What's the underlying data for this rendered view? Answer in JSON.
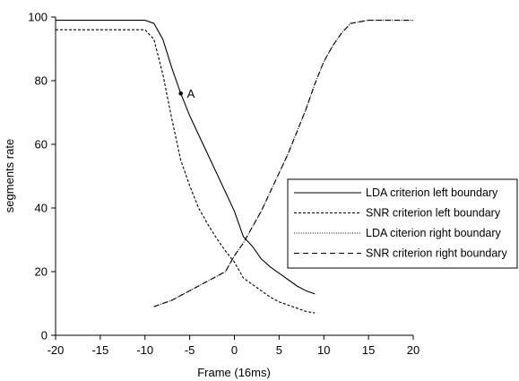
{
  "chart_data": {
    "type": "line",
    "title": "",
    "xlabel": "Frame (16ms)",
    "ylabel": "segments rate",
    "xlim": [
      -20,
      20
    ],
    "ylim": [
      0,
      100
    ],
    "xticks": [
      -20,
      -15,
      -10,
      -5,
      0,
      5,
      10,
      15,
      20
    ],
    "yticks": [
      0,
      20,
      40,
      60,
      80,
      100
    ],
    "grid": false,
    "legend_placement": "center-right",
    "series": [
      {
        "name": "LDA criterion left boundary",
        "style": "solid",
        "x": [
          -20,
          -10,
          -9,
          -8,
          -7,
          -6,
          -5,
          -4,
          -3,
          -2,
          -1,
          0,
          1,
          2,
          3,
          4,
          5,
          6,
          7,
          8,
          9
        ],
        "y": [
          99,
          99,
          98,
          93,
          84,
          76,
          69,
          63,
          57,
          51,
          45,
          39,
          31,
          28,
          24,
          21.5,
          19.5,
          17.5,
          15.5,
          14,
          13
        ]
      },
      {
        "name": "SNR criterion left boundary",
        "style": "dashed-short",
        "x": [
          -20,
          -10,
          -9,
          -8,
          -7,
          -6,
          -5,
          -4,
          -3,
          -2,
          -1,
          0,
          1,
          2,
          3,
          4,
          5,
          6,
          7,
          8,
          9
        ],
        "y": [
          96,
          96,
          93,
          82,
          68,
          55,
          47,
          40,
          35,
          30.5,
          26.5,
          23,
          18,
          16,
          14,
          12,
          10.5,
          9.5,
          8.5,
          7.5,
          7
        ]
      },
      {
        "name": "LDA citerion right boundary",
        "style": "dotted",
        "x": [
          -9,
          -8,
          -7,
          -6,
          -5,
          -4,
          -3,
          -2,
          -1,
          0,
          1,
          2,
          3,
          4,
          5,
          6,
          7,
          8,
          9,
          10,
          11,
          12,
          13,
          14,
          15,
          16,
          17,
          18,
          19,
          20
        ],
        "y": [
          9,
          10,
          11,
          12.5,
          14,
          15.5,
          17,
          18.5,
          20,
          25,
          29,
          34,
          39,
          45,
          51,
          57,
          64,
          71,
          79,
          86,
          91,
          95,
          98,
          98.5,
          99,
          99,
          99,
          99,
          99,
          99
        ]
      },
      {
        "name": "SNR criterion right boundary",
        "style": "dashed-long",
        "x": [
          -9,
          -8,
          -7,
          -6,
          -5,
          -4,
          -3,
          -2,
          -1,
          0,
          1,
          2,
          3,
          4,
          5,
          6,
          7,
          8,
          9,
          10,
          11,
          12,
          13,
          14,
          15,
          16,
          17,
          18,
          19,
          20
        ],
        "y": [
          9,
          10,
          11,
          12.5,
          14,
          15.5,
          17,
          18.5,
          20,
          25,
          29,
          34,
          39,
          45,
          51,
          57,
          64,
          71,
          79,
          86,
          91,
          95,
          98,
          98.5,
          99,
          99,
          99,
          99,
          99,
          99
        ]
      }
    ],
    "annotations": [
      {
        "text": "A",
        "x": -6,
        "y": 76
      }
    ]
  }
}
